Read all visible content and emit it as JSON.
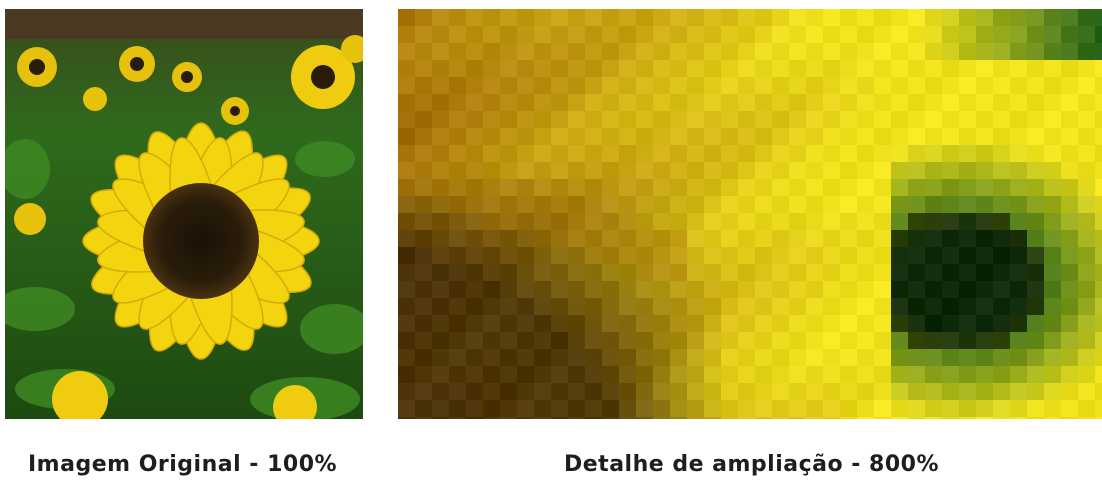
{
  "captions": {
    "original": "Imagem Original - 100%",
    "zoom": "Detalhe de ampliação - 800%"
  },
  "colors": {
    "petal": "#f2d50f",
    "petal_dark": "#d9a808",
    "center": "#2a1c0a",
    "foliage": "#2f6a1c",
    "foliage_dark": "#173d0e",
    "zoom_yellow": "#e8dc18",
    "zoom_ochre": "#b8860b"
  }
}
